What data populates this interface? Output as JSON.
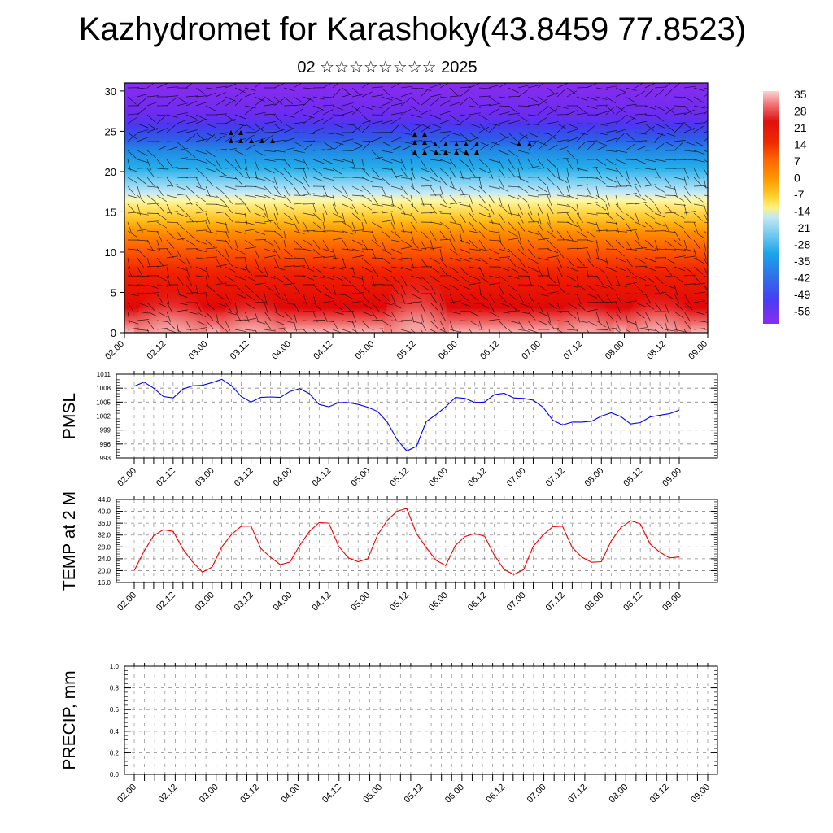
{
  "header": {
    "title": "Kazhydromet for Karashoky(43.8459 77.8523)",
    "subtitle": "02 ☆☆☆☆☆☆☆☆ 2025"
  },
  "time_ticks": [
    "02.00",
    "02.12",
    "03.00",
    "03.12",
    "04.00",
    "04.12",
    "05.00",
    "05.12",
    "06.00",
    "06.12",
    "07.00",
    "07.12",
    "08.00",
    "08.12",
    "09.00"
  ],
  "colorbar": {
    "labels": [
      "35",
      "28",
      "21",
      "14",
      "7",
      "0",
      "-7",
      "-14",
      "-21",
      "-28",
      "-35",
      "-42",
      "-49",
      "-56"
    ],
    "stops": [
      "#fad4d4",
      "#f07070",
      "#e01010",
      "#ee2a00",
      "#ff6a00",
      "#ff9a00",
      "#ffcf2a",
      "#fff27a",
      "#c8e8f2",
      "#6fc8f0",
      "#1aa4e8",
      "#3070e8",
      "#4a3cf0",
      "#8a2cf0"
    ]
  },
  "chart_data": [
    {
      "type": "heatmap",
      "name": "",
      "ylabel": "",
      "ylim": [
        0,
        31
      ],
      "yticks": [
        "0",
        "5",
        "10",
        "15",
        "20",
        "25",
        "30"
      ],
      "xticks": [
        "02.00",
        "02.12",
        "03.00",
        "03.12",
        "04.00",
        "04.12",
        "05.00",
        "05.12",
        "06.00",
        "06.12",
        "07.00",
        "07.12",
        "08.00",
        "08.12",
        "09.00"
      ],
      "note_bands_top_to_bottom": [
        "purple",
        "blue",
        "light-blue",
        "yellow",
        "orange",
        "red",
        "light-red"
      ]
    },
    {
      "type": "line",
      "ylabel": "PMSL",
      "ylim": [
        993,
        1011
      ],
      "yticks": [
        "993",
        "996",
        "999",
        "1002",
        "1005",
        "1008",
        "1011"
      ],
      "color": "#0000ee",
      "values": [
        1008.4,
        1009.3,
        1008.0,
        1006.2,
        1005.9,
        1007.8,
        1008.5,
        1008.6,
        1009.2,
        1009.9,
        1008.5,
        1006.2,
        1005.0,
        1006.0,
        1006.1,
        1006.0,
        1007.3,
        1007.9,
        1006.8,
        1004.5,
        1004.0,
        1004.9,
        1004.9,
        1004.5,
        1003.9,
        1003.0,
        1000.7,
        997.0,
        994.5,
        995.5,
        1000.8,
        1002.3,
        1004.0,
        1006.0,
        1005.8,
        1004.9,
        1005.0,
        1006.6,
        1006.9,
        1005.9,
        1005.8,
        1005.4,
        1003.9,
        1001.1,
        1000.1,
        1000.7,
        1000.7,
        1000.9,
        1002.0,
        1002.7,
        1001.9,
        1000.3,
        1000.6,
        1001.8,
        1002.2,
        1002.5,
        1003.3
      ]
    },
    {
      "type": "line",
      "ylabel": "TEMP at 2 M",
      "ylim": [
        16,
        44
      ],
      "yticks": [
        "16.0",
        "20.0",
        "24.0",
        "28.0",
        "32.0",
        "36.0",
        "40.0",
        "44.0"
      ],
      "color": "#ee0000",
      "values": [
        20.0,
        26.5,
        31.8,
        33.8,
        33.2,
        27.3,
        22.9,
        19.5,
        21.2,
        28.0,
        32.2,
        35.0,
        35.0,
        27.5,
        24.5,
        22.0,
        22.9,
        28.5,
        33.2,
        36.2,
        36.0,
        28.2,
        24.3,
        23.0,
        24.0,
        32.0,
        37.0,
        40.0,
        41.0,
        32.5,
        27.8,
        23.5,
        21.7,
        28.5,
        31.5,
        32.5,
        31.6,
        25.2,
        20.4,
        18.7,
        20.3,
        28.2,
        32.0,
        34.8,
        35.0,
        27.8,
        24.5,
        22.8,
        23.0,
        30.0,
        34.5,
        36.8,
        35.8,
        29.0,
        26.2,
        24.3,
        24.6
      ]
    },
    {
      "type": "line",
      "ylabel": "PRECIP, mm",
      "ylim": [
        0,
        1.0
      ],
      "yticks": [
        "0.0",
        "0.2",
        "0.4",
        "0.6",
        "0.8",
        "1.0"
      ],
      "color": "#005500",
      "values": [
        0,
        0,
        0,
        0,
        0,
        0,
        0,
        0,
        0,
        0,
        0,
        0,
        0,
        0,
        0,
        0,
        0,
        0,
        0,
        0,
        0,
        0,
        0,
        0,
        0,
        0,
        0,
        0,
        0,
        0,
        0,
        0,
        0,
        0,
        0,
        0,
        0,
        0,
        0,
        0,
        0,
        0,
        0,
        0,
        0,
        0,
        0,
        0,
        0,
        0,
        0,
        0,
        0,
        0,
        0,
        0,
        0
      ]
    }
  ]
}
